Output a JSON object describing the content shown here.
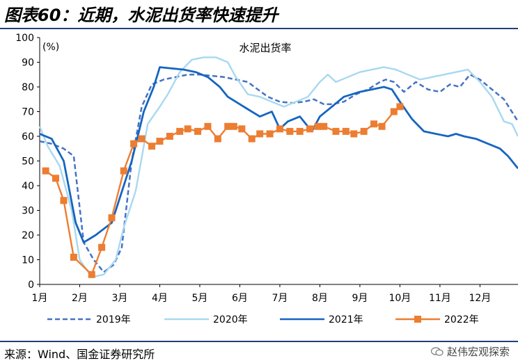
{
  "header": {
    "title": "图表60：近期，水泥出货率快速提升"
  },
  "footer": {
    "source": "来源：Wind、国金证券研究所",
    "watermark": "赵伟宏观探索",
    "watermark_icon": "wechat-icon"
  },
  "chart_data": {
    "type": "line",
    "title": "水泥出货率",
    "ylabel": "(%)",
    "ylim": [
      0,
      100
    ],
    "yticks": [
      0,
      10,
      20,
      30,
      40,
      50,
      60,
      70,
      80,
      90,
      100
    ],
    "xlim": [
      1,
      12.95
    ],
    "xticks": [
      1,
      2,
      3,
      4,
      5,
      6,
      7,
      8,
      9,
      10,
      11,
      12
    ],
    "xtick_labels": [
      "1月",
      "2月",
      "3月",
      "4月",
      "5月",
      "6月",
      "7月",
      "8月",
      "9月",
      "10月",
      "11月",
      "12月"
    ],
    "legend_position": "bottom",
    "series": [
      {
        "name": "2019年",
        "color": "#4472c4",
        "style": "dashed",
        "x": [
          1.0,
          1.3,
          1.6,
          1.85,
          2.1,
          2.35,
          2.6,
          2.85,
          3.05,
          3.3,
          3.55,
          3.8,
          4.1,
          4.4,
          4.7,
          5.0,
          5.3,
          5.6,
          5.9,
          6.2,
          6.45,
          6.7,
          7.0,
          7.3,
          7.6,
          7.85,
          8.1,
          8.3,
          8.6,
          8.9,
          9.2,
          9.5,
          9.65,
          9.85,
          10.1,
          10.4,
          10.7,
          11.0,
          11.25,
          11.5,
          11.75,
          12.0,
          12.3,
          12.6,
          12.95
        ],
        "y": [
          58,
          57,
          55,
          52,
          17,
          10,
          5,
          8,
          15,
          50,
          72,
          81,
          83,
          84,
          85,
          85,
          84.5,
          84,
          83,
          82,
          79,
          76,
          74,
          73.5,
          74,
          75,
          73,
          73,
          74,
          77,
          79,
          82,
          83,
          82,
          78,
          82,
          79,
          78,
          81,
          80,
          85,
          83,
          79,
          75,
          66
        ]
      },
      {
        "name": "2020年",
        "color": "#a8d8f0",
        "style": "solid",
        "x": [
          1.0,
          1.2,
          1.5,
          1.8,
          2.0,
          2.3,
          2.6,
          2.9,
          3.1,
          3.4,
          3.7,
          4.0,
          4.2,
          4.5,
          4.8,
          5.1,
          5.4,
          5.7,
          5.9,
          6.2,
          6.5,
          6.8,
          7.1,
          7.4,
          7.7,
          8.0,
          8.2,
          8.4,
          8.7,
          9.0,
          9.3,
          9.6,
          9.9,
          10.2,
          10.5,
          10.8,
          11.1,
          11.4,
          11.7,
          12.0,
          12.3,
          12.6,
          12.8,
          12.95
        ],
        "y": [
          64,
          56,
          48,
          30,
          10,
          3,
          4,
          10,
          23,
          38,
          65,
          72,
          77,
          86,
          91,
          92,
          92,
          90,
          84,
          77,
          76,
          74,
          72,
          74,
          76,
          82,
          85,
          82,
          84,
          86,
          87,
          88,
          87,
          85,
          83,
          84,
          85,
          86,
          87,
          82,
          76,
          66,
          65,
          60
        ]
      },
      {
        "name": "2021年",
        "color": "#1565c0",
        "style": "solid",
        "x": [
          1.0,
          1.3,
          1.6,
          1.9,
          2.1,
          2.4,
          2.8,
          3.0,
          3.3,
          3.6,
          3.85,
          4.0,
          4.3,
          4.6,
          4.9,
          5.2,
          5.5,
          5.7,
          5.9,
          6.2,
          6.5,
          6.8,
          7.0,
          7.2,
          7.5,
          7.8,
          8.0,
          8.3,
          8.6,
          9.0,
          9.3,
          9.6,
          9.8,
          10.0,
          10.3,
          10.6,
          10.9,
          11.2,
          11.4,
          11.6,
          11.9,
          12.2,
          12.5,
          12.7,
          12.95
        ],
        "y": [
          61,
          59,
          50,
          25,
          17,
          20,
          25,
          35,
          50,
          70,
          80,
          88,
          87.5,
          87,
          86,
          84,
          80,
          76,
          74,
          71,
          68,
          70,
          63,
          66,
          68,
          62,
          68,
          72,
          76,
          78,
          79,
          80,
          79,
          74,
          67,
          62,
          61,
          60,
          61,
          60,
          59,
          57,
          55,
          52,
          47
        ]
      },
      {
        "name": "2022年",
        "color": "#ed7d31",
        "style": "solid",
        "marker": "square",
        "x": [
          1.15,
          1.4,
          1.6,
          1.85,
          2.3,
          2.55,
          2.8,
          3.1,
          3.35,
          3.55,
          3.8,
          4.0,
          4.25,
          4.5,
          4.7,
          4.95,
          5.2,
          5.45,
          5.7,
          5.85,
          6.05,
          6.3,
          6.5,
          6.75,
          7.0,
          7.25,
          7.5,
          7.75,
          7.95,
          8.1,
          8.4,
          8.65,
          8.85,
          9.1,
          9.35,
          9.55,
          9.85,
          10.0
        ],
        "y": [
          46,
          43,
          34,
          11,
          4,
          15,
          27,
          46,
          57,
          59,
          56,
          58,
          60,
          62,
          63,
          62,
          64,
          59,
          64,
          64,
          63,
          59,
          61,
          61,
          63,
          62,
          62,
          63,
          64,
          64,
          62,
          62,
          61,
          62,
          65,
          64,
          70,
          72
        ]
      }
    ]
  }
}
